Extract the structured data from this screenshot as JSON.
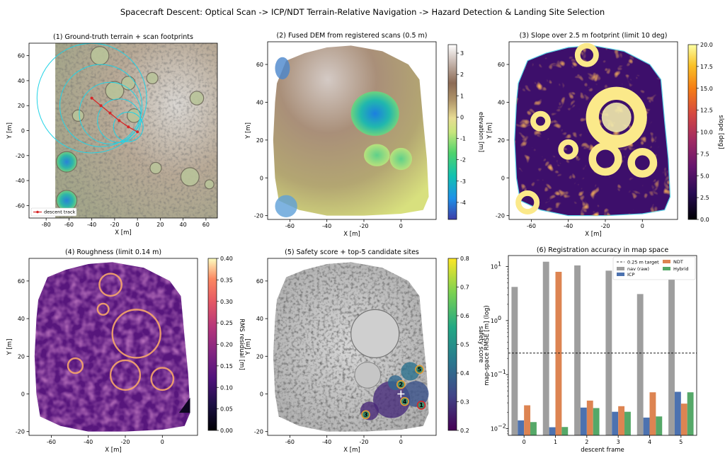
{
  "figure": {
    "suptitle": "Spacecraft Descent: Optical Scan -> ICP/NDT Terrain-Relative Navigation -> Hazard Detection & Landing Site Selection"
  },
  "chart_data": [
    {
      "id": "p1",
      "type": "heatmap",
      "title": "(1) Ground-truth terrain + scan footprints",
      "xlabel": "X [m]",
      "ylabel": "Y [m]",
      "xlim": [
        -95,
        70
      ],
      "ylim": [
        -70,
        70
      ],
      "xticks": [
        "-80",
        "-60",
        "-40",
        "-20",
        "0",
        "20",
        "40",
        "60"
      ],
      "yticks": [
        "-60",
        "-40",
        "-20",
        "0",
        "20",
        "40",
        "60"
      ],
      "legend": {
        "placement": "lower-left",
        "entries": [
          "descent track"
        ]
      },
      "descent_track": {
        "x": [
          -40,
          -32,
          -24,
          -16,
          -8,
          0
        ],
        "y": [
          26,
          20,
          14,
          8,
          3,
          -1
        ]
      },
      "footprint_circles": [
        {
          "cx": -40,
          "cy": 26,
          "r": 48
        },
        {
          "cx": -32,
          "cy": 20,
          "r": 36
        },
        {
          "cx": -24,
          "cy": 14,
          "r": 27
        },
        {
          "cx": -16,
          "cy": 8,
          "r": 19
        },
        {
          "cx": -8,
          "cy": 3,
          "r": 13
        }
      ],
      "craters": [
        {
          "x": -33,
          "y": 60,
          "r": 8
        },
        {
          "x": -20,
          "y": 32,
          "r": 8
        },
        {
          "x": -8,
          "y": 38,
          "r": 6
        },
        {
          "x": -52,
          "y": 12,
          "r": 5
        },
        {
          "x": -3,
          "y": 12,
          "r": 6
        },
        {
          "x": 13,
          "y": 42,
          "r": 5
        },
        {
          "x": 52,
          "y": 26,
          "r": 6
        },
        {
          "x": -62,
          "y": -25,
          "r": 9
        },
        {
          "x": -62,
          "y": -56,
          "r": 9
        },
        {
          "x": 46,
          "y": -37,
          "r": 8
        },
        {
          "x": 16,
          "y": -30,
          "r": 5
        },
        {
          "x": 63,
          "y": -43,
          "r": 4
        }
      ],
      "colors": {
        "track": "#d62728",
        "footprint": "#22d3e6"
      }
    },
    {
      "id": "p2",
      "type": "heatmap",
      "title": "(2) Fused DEM from registered scans (0.5 m)",
      "xlabel": "X [m]",
      "ylabel": "Y [m]",
      "xlim": [
        -72,
        19
      ],
      "ylim": [
        -22,
        72
      ],
      "xticks": [
        "-60",
        "-40",
        "-20",
        "0"
      ],
      "yticks": [
        "-20",
        "0",
        "20",
        "40",
        "60"
      ],
      "colorbar": {
        "label": "elevation [m]",
        "min": -4.8,
        "max": 3.4,
        "ticks": [
          "3",
          "2",
          "1",
          "0",
          "-1",
          "-2",
          "-3",
          "-4"
        ],
        "colormap": "terrain"
      }
    },
    {
      "id": "p3",
      "type": "heatmap",
      "title": "(3) Slope over 2.5 m footprint (limit 10 deg)",
      "xlabel": "X [m]",
      "ylabel": "Y [m]",
      "xlim": [
        -72,
        19
      ],
      "ylim": [
        -22,
        72
      ],
      "xticks": [
        "-60",
        "-40",
        "-20",
        "0"
      ],
      "yticks": [
        "-20",
        "0",
        "20",
        "40",
        "60"
      ],
      "colorbar": {
        "label": "slope [deg]",
        "min": 0,
        "max": 20,
        "ticks": [
          "0.0",
          "2.5",
          "5.0",
          "7.5",
          "10.0",
          "12.5",
          "15.0",
          "17.5",
          "20.0"
        ],
        "colormap": "inferno"
      }
    },
    {
      "id": "p4",
      "type": "heatmap",
      "title": "(4) Roughness (limit 0.14 m)",
      "xlabel": "X [m]",
      "ylabel": "Y [m]",
      "xlim": [
        -72,
        19
      ],
      "ylim": [
        -22,
        72
      ],
      "xticks": [
        "-60",
        "-40",
        "-20",
        "0"
      ],
      "yticks": [
        "-20",
        "0",
        "20",
        "40",
        "60"
      ],
      "colorbar": {
        "label": "RMS residual [m]",
        "min": 0,
        "max": 0.4,
        "ticks": [
          "0.00",
          "0.05",
          "0.10",
          "0.15",
          "0.20",
          "0.25",
          "0.30",
          "0.35",
          "0.40"
        ],
        "colormap": "magma"
      }
    },
    {
      "id": "p5",
      "type": "heatmap",
      "title": "(5) Safety score + top-5 candidate sites",
      "xlabel": "X [m]",
      "ylabel": "Y [m]",
      "xlim": [
        -72,
        19
      ],
      "ylim": [
        -22,
        72
      ],
      "xticks": [
        "-60",
        "-40",
        "-20",
        "0"
      ],
      "yticks": [
        "-20",
        "0",
        "20",
        "40",
        "60"
      ],
      "colorbar": {
        "label": "safety score",
        "min": 0.2,
        "max": 0.8,
        "ticks": [
          "0.2",
          "0.3",
          "0.4",
          "0.5",
          "0.6",
          "0.7",
          "0.8"
        ],
        "colormap": "viridis"
      },
      "sites": [
        {
          "rank": "1",
          "x": 11,
          "y": -6,
          "ring": "#d62728"
        },
        {
          "rank": "2",
          "x": 0,
          "y": 5,
          "ring": "#e69b2e"
        },
        {
          "rank": "3",
          "x": -19,
          "y": -11,
          "ring": "#e69b2e"
        },
        {
          "rank": "4",
          "x": 2,
          "y": -4,
          "ring": "#e69b2e"
        },
        {
          "rank": "5",
          "x": 10,
          "y": 13,
          "ring": "#e69b2e"
        }
      ],
      "target_marker": {
        "x": 0,
        "y": 0
      }
    },
    {
      "id": "p6",
      "type": "bar",
      "title": "(6) Registration accuracy in map space",
      "xlabel": "descent frame",
      "ylabel": "map-space RMSE [m] (log)",
      "categories": [
        "0",
        "1",
        "2",
        "3",
        "4",
        "5"
      ],
      "yscale": "log",
      "ylim": [
        0.0075,
        16
      ],
      "yticks": [
        {
          "v": 0.01,
          "t": "10",
          "e": "−2"
        },
        {
          "v": 0.1,
          "t": "10",
          "e": "−1"
        },
        {
          "v": 1,
          "t": "10",
          "e": "0"
        },
        {
          "v": 10,
          "t": "10",
          "e": "1"
        }
      ],
      "target_line": {
        "value": 0.25,
        "label": "0.25 m target"
      },
      "legend": {
        "placement": "top-right"
      },
      "series": [
        {
          "name": "nav (raw)",
          "color": "#9e9e9e",
          "values": [
            4.2,
            12.3,
            10.5,
            8.4,
            3.1,
            6.6
          ]
        },
        {
          "name": "ICP",
          "color": "#4c72b0",
          "values": [
            0.0142,
            0.0106,
            0.0245,
            0.0205,
            0.016,
            0.048
          ]
        },
        {
          "name": "NDT",
          "color": "#dd8452",
          "values": [
            0.027,
            8.0,
            0.033,
            0.026,
            0.047,
            0.029
          ]
        },
        {
          "name": "Hybrid",
          "color": "#55a868",
          "values": [
            0.0132,
            0.0107,
            0.024,
            0.0205,
            0.0168,
            0.047
          ]
        }
      ]
    }
  ]
}
